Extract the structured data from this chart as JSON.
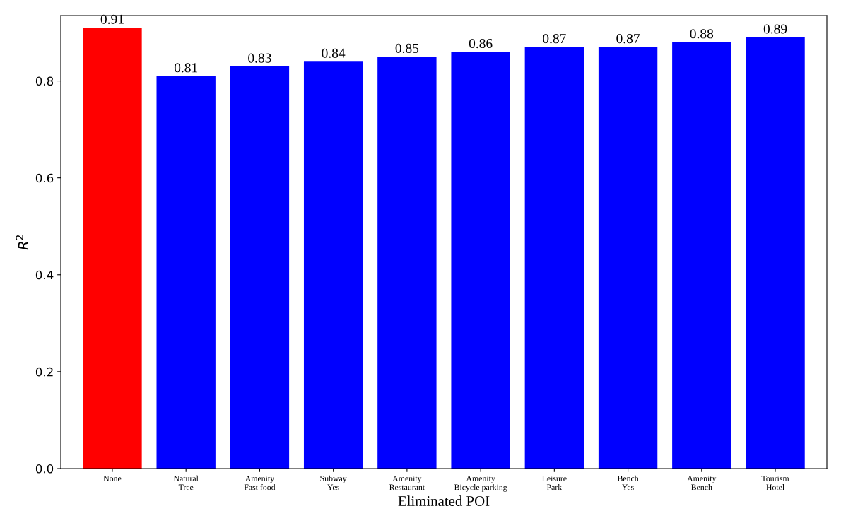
{
  "chart_data": {
    "type": "bar",
    "xlabel": "Eliminated POI",
    "ylabel": "R$^{2}$",
    "categories": [
      "None",
      "Natural\nTree",
      "Amenity\nFast food",
      "Subway\nYes",
      "Amenity\nRestaurant",
      "Amenity\nBicycle parking",
      "Leisure\nPark",
      "Bench\nYes",
      "Amenity\nBench",
      "Tourism\nHotel"
    ],
    "values": [
      0.91,
      0.81,
      0.83,
      0.84,
      0.85,
      0.86,
      0.87,
      0.87,
      0.88,
      0.89
    ],
    "colors": [
      "#ff0000",
      "#0000ff",
      "#0000ff",
      "#0000ff",
      "#0000ff",
      "#0000ff",
      "#0000ff",
      "#0000ff",
      "#0000ff",
      "#0000ff"
    ],
    "ylim": [
      0,
      0.935
    ],
    "yticks": [
      {
        "value": 0,
        "label": "0.0"
      },
      0.2,
      0.4,
      0.6,
      0.8
    ],
    "data_labels": true,
    "grid": false,
    "legend": false
  }
}
